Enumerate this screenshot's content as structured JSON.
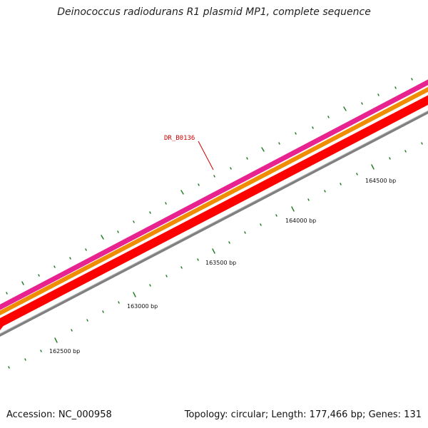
{
  "title": "Deinococcus radiodurans R1 plasmid MP1, complete sequence",
  "footer": {
    "accession": "Accession: NC_000958",
    "summary": "Topology: circular; Length: 177,466 bp; Genes: 131"
  },
  "gene_label": "DR_B0136",
  "ticks": [
    {
      "position": 162500,
      "label": "162500 bp"
    },
    {
      "position": 163000,
      "label": "163000 bp"
    },
    {
      "position": 163500,
      "label": "163500 bp"
    },
    {
      "position": 164000,
      "label": "164000 bp"
    },
    {
      "position": 164500,
      "label": "164500 bp"
    }
  ],
  "colors": {
    "magenta_track": "#e8238f",
    "orange_track": "#f08c00",
    "red_track": "#ff0000",
    "backbone": "#808080",
    "tick": "#1f7a1f",
    "label": "#d00000"
  }
}
